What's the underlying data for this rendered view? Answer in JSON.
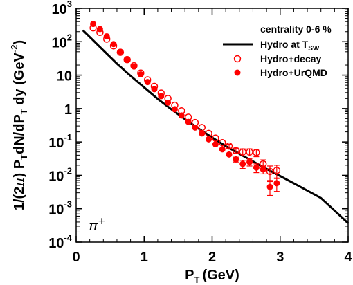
{
  "chart_data": {
    "type": "scatter",
    "xlabel": "P",
    "xlabel_sub": "T",
    "xlabel_unit": "(GeV)",
    "ylabel_parts": [
      "1/(2",
      "π",
      ") P",
      "T",
      "dN/dP",
      "T",
      " dy (GeV",
      "-2",
      ")"
    ],
    "xlim": [
      0,
      4
    ],
    "ylim": [
      0.0001,
      1000
    ],
    "yscale": "log",
    "x_ticks": [
      "0",
      "1",
      "2",
      "3",
      "4"
    ],
    "y_ticks": [
      {
        "base": "10",
        "exp": "3"
      },
      {
        "base": "10",
        "exp": "2"
      },
      {
        "base": "10",
        "exp": ""
      },
      {
        "base": "1",
        "exp": ""
      },
      {
        "base": "10",
        "exp": "-1"
      },
      {
        "base": "10",
        "exp": "-2"
      },
      {
        "base": "10",
        "exp": "-3"
      },
      {
        "base": "10",
        "exp": "-4"
      }
    ],
    "legend": {
      "title": "centrality 0-6 %",
      "position": "top-right",
      "items": [
        {
          "label": "Hydro at T",
          "sub": "SW"
        },
        {
          "label": "Hydro+decay",
          "sub": ""
        },
        {
          "label": "Hydro+UrQMD",
          "sub": ""
        }
      ]
    },
    "annotation": {
      "base": "π",
      "sup": "+"
    },
    "series": [
      {
        "name": "Hydro at TSW",
        "style": "line",
        "color": "#000000",
        "x": [
          0.1,
          0.25,
          0.4,
          0.6,
          0.8,
          1.0,
          1.2,
          1.4,
          1.6,
          1.8,
          2.0,
          2.2,
          2.5,
          2.8,
          3.0,
          3.3,
          3.6,
          4.0
        ],
        "y": [
          220,
          110,
          55,
          22,
          9.5,
          4.3,
          1.95,
          0.95,
          0.48,
          0.25,
          0.135,
          0.075,
          0.034,
          0.0155,
          0.0095,
          0.0045,
          0.0021,
          0.00037
        ]
      },
      {
        "name": "Hydro+decay",
        "style": "open-circle",
        "color": "#ff0000",
        "x": [
          0.25,
          0.35,
          0.45,
          0.55,
          0.65,
          0.75,
          0.85,
          0.95,
          1.05,
          1.15,
          1.25,
          1.35,
          1.45,
          1.55,
          1.65,
          1.75,
          1.85,
          1.95,
          2.05,
          2.15,
          2.25,
          2.35,
          2.45,
          2.55,
          2.65,
          2.75,
          2.85,
          2.95
        ],
        "y": [
          260,
          190,
          120,
          75,
          48,
          29,
          19,
          11.5,
          7.2,
          4.6,
          2.9,
          2.0,
          1.25,
          0.85,
          0.55,
          0.38,
          0.27,
          0.18,
          0.13,
          0.095,
          0.075,
          0.055,
          0.05,
          0.05,
          0.048,
          0.022,
          0.013,
          0.014
        ],
        "err": [
          0,
          0,
          0,
          0,
          0,
          0,
          0,
          0,
          0,
          0,
          0,
          0,
          0,
          0,
          0,
          0,
          0,
          0,
          0,
          0,
          0.01,
          0.01,
          0.012,
          0.012,
          0.012,
          0.007,
          0.006,
          0.006
        ]
      },
      {
        "name": "Hydro+UrQMD",
        "style": "filled-circle",
        "color": "#ff0000",
        "x": [
          0.25,
          0.35,
          0.45,
          0.55,
          0.65,
          0.75,
          0.85,
          0.95,
          1.05,
          1.15,
          1.25,
          1.35,
          1.45,
          1.55,
          1.65,
          1.75,
          1.85,
          1.95,
          2.05,
          2.15,
          2.25,
          2.35,
          2.45,
          2.55,
          2.65,
          2.75,
          2.85,
          2.95
        ],
        "y": [
          340,
          240,
          145,
          85,
          50,
          30,
          18,
          10.5,
          6.2,
          3.8,
          2.35,
          1.5,
          0.95,
          0.62,
          0.4,
          0.27,
          0.18,
          0.12,
          0.085,
          0.06,
          0.042,
          0.03,
          0.022,
          0.025,
          0.017,
          0.015,
          0.0045,
          0.0058
        ],
        "err": [
          0,
          0,
          0,
          0,
          0,
          0,
          0,
          0,
          0,
          0,
          0,
          0,
          0,
          0,
          0,
          0,
          0,
          0,
          0,
          0,
          0,
          0.005,
          0.006,
          0.006,
          0.005,
          0.004,
          0.002,
          0.0025
        ]
      }
    ]
  }
}
